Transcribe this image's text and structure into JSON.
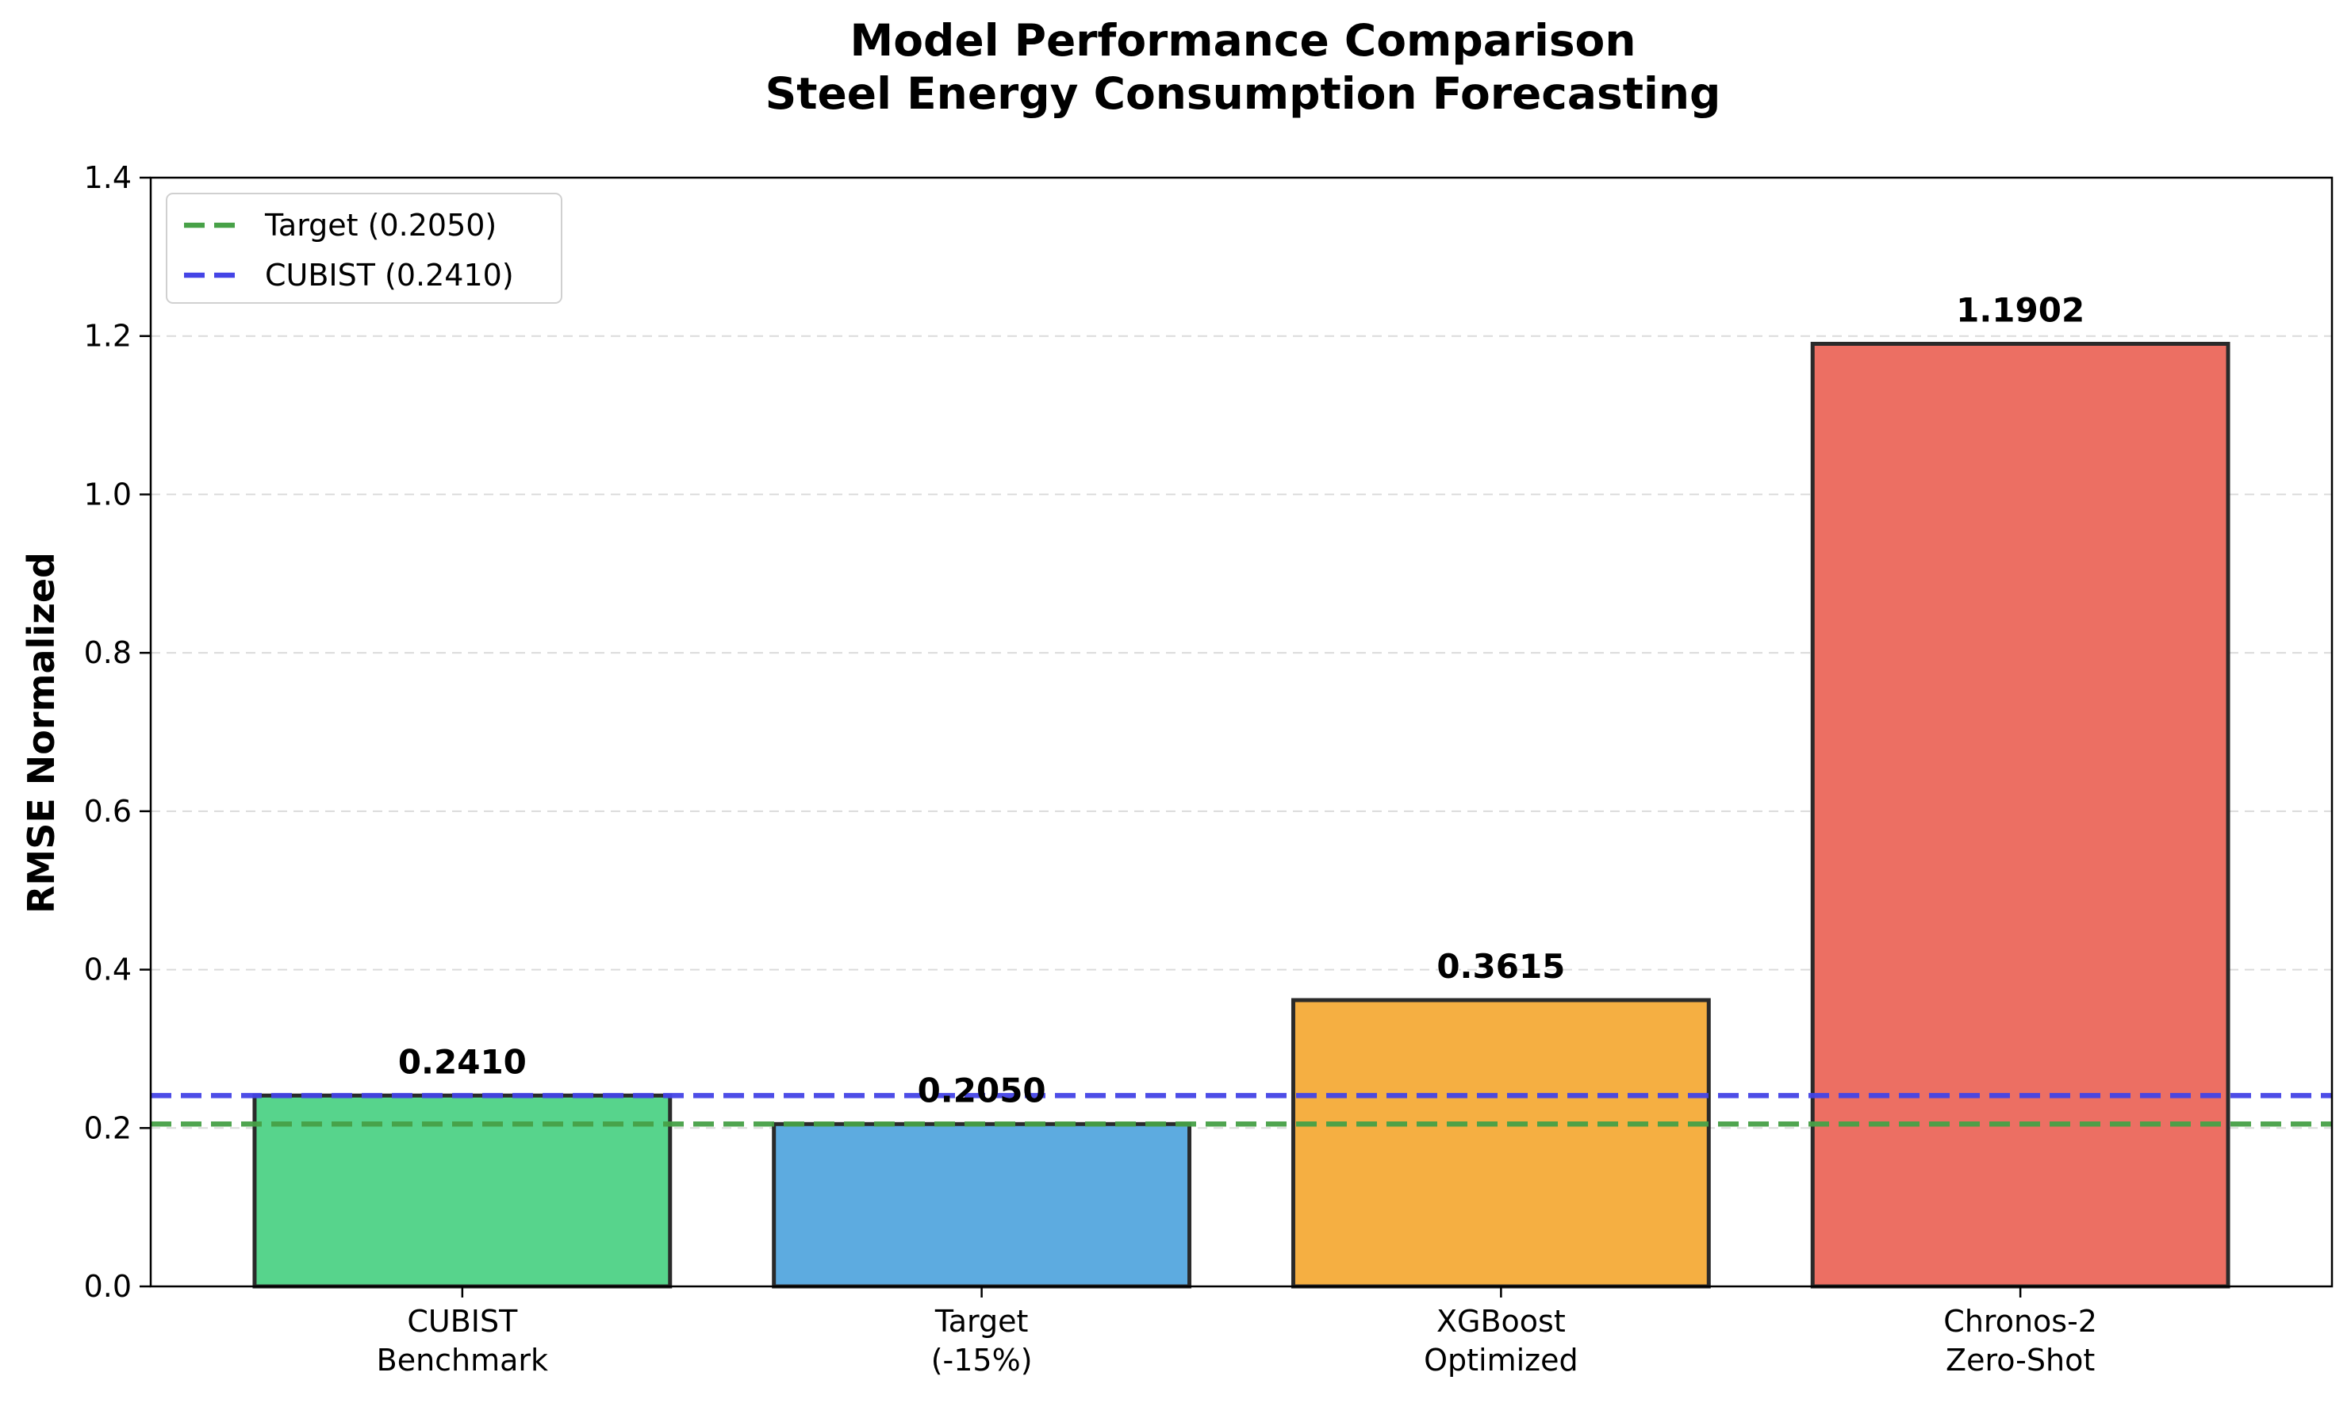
{
  "chart_data": {
    "type": "bar",
    "title": [
      "Model Performance Comparison",
      "Steel Energy Consumption Forecasting"
    ],
    "ylabel": "RMSE Normalized",
    "xlabel": "",
    "ylim": [
      0,
      1.4
    ],
    "yticks": [
      0.0,
      0.2,
      0.4,
      0.6,
      0.8,
      1.0,
      1.2,
      1.4
    ],
    "ytick_labels": [
      "0.0",
      "0.2",
      "0.4",
      "0.6",
      "0.8",
      "1.0",
      "1.2",
      "1.4"
    ],
    "grid": "y-dashed",
    "legend_position": "top-left",
    "categories": [
      [
        "CUBIST",
        "Benchmark"
      ],
      [
        "Target",
        "(-15%)"
      ],
      [
        "XGBoost",
        "Optimized"
      ],
      [
        "Chronos-2",
        "Zero-Shot"
      ]
    ],
    "values": [
      0.241,
      0.205,
      0.3615,
      1.1902
    ],
    "value_labels": [
      "0.2410",
      "0.2050",
      "0.3615",
      "1.1902"
    ],
    "bar_colors": [
      "#57d48c",
      "#5dabe0",
      "#f5af42",
      "#ec6f63"
    ],
    "bar_edge_color": "#2a2a2a",
    "reference_lines": [
      {
        "label": "Target (0.2050)",
        "value": 0.205,
        "color": "#47a147",
        "style": "dashed"
      },
      {
        "label": "CUBIST (0.2410)",
        "value": 0.241,
        "color": "#4444e6",
        "style": "dashed"
      }
    ]
  }
}
